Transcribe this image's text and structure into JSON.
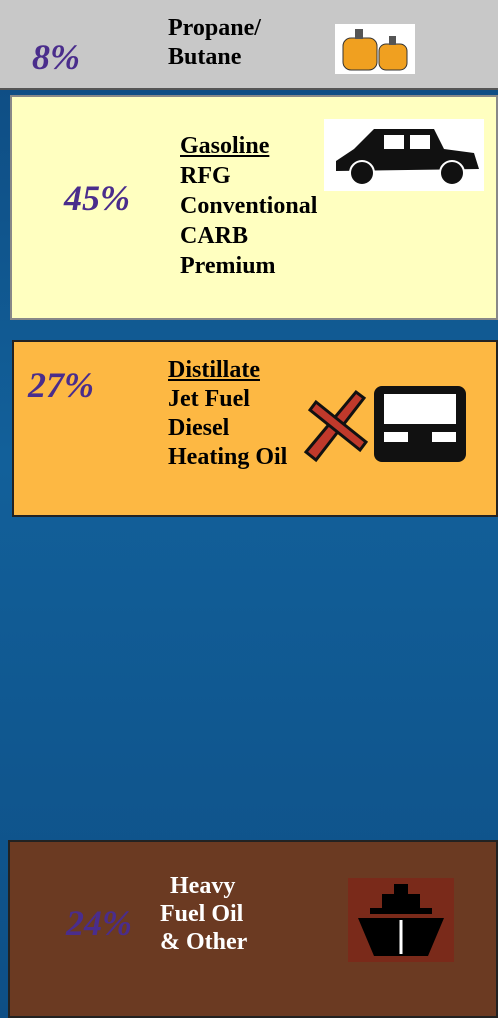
{
  "sections": [
    {
      "percent": "8%",
      "lines": [
        "Propane/",
        "Butane"
      ]
    },
    {
      "percent": "45%",
      "heading": "Gasoline",
      "lines": [
        "RFG",
        "Conventional",
        "CARB",
        "Premium"
      ]
    },
    {
      "percent": "27%",
      "heading": "Distillate",
      "lines": [
        "Jet Fuel",
        "Diesel",
        "Heating Oil"
      ]
    },
    {
      "percent": "24%",
      "lines": [
        "Heavy",
        "Fuel Oil",
        "& Other"
      ]
    }
  ]
}
